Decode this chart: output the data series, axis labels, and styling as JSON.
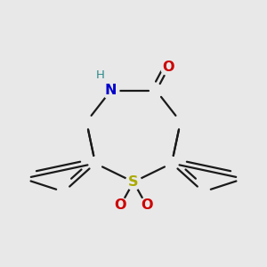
{
  "background_color": "#e8e8e8",
  "bond_color": "#1a1a1a",
  "bond_width": 1.6,
  "atom_colors": {
    "N": "#0000cc",
    "H": "#2e8b8b",
    "O": "#cc0000",
    "S": "#aaaa00",
    "C": "#1a1a1a"
  }
}
